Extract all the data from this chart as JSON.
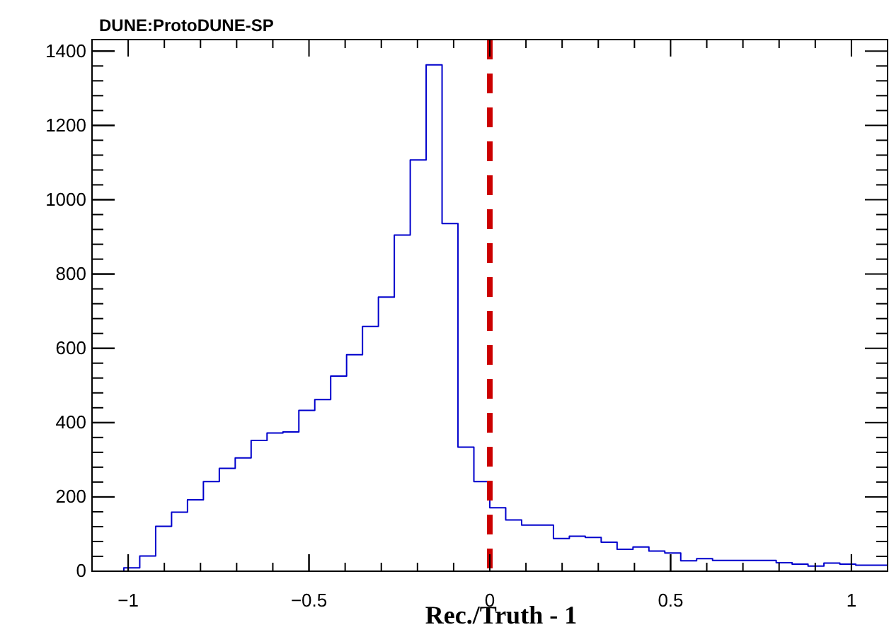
{
  "chart_data": {
    "type": "histogram",
    "title": "DUNE:ProtoDUNE-SP",
    "xlabel": "Rec./Truth - 1",
    "bins": [
      -1.1,
      -1.056,
      -1.012,
      -0.968,
      -0.924,
      -0.88,
      -0.836,
      -0.792,
      -0.748,
      -0.704,
      -0.66,
      -0.616,
      -0.572,
      -0.528,
      -0.484,
      -0.44,
      -0.396,
      -0.352,
      -0.308,
      -0.264,
      -0.22,
      -0.176,
      -0.132,
      -0.088,
      -0.044,
      0,
      0.044,
      0.088,
      0.132,
      0.176,
      0.22,
      0.264,
      0.308,
      0.352,
      0.396,
      0.44,
      0.484,
      0.528,
      0.572,
      0.616,
      0.66,
      0.704,
      0.748,
      0.792,
      0.836,
      0.88,
      0.924,
      0.968,
      1.012,
      1.056,
      1.1
    ],
    "values": [
      0,
      0,
      9,
      41,
      121,
      159,
      192,
      241,
      277,
      305,
      352,
      372,
      375,
      433,
      462,
      525,
      583,
      659,
      738,
      905,
      1107,
      1363,
      936,
      334,
      241,
      171,
      138,
      124,
      124,
      88,
      94,
      91,
      78,
      59,
      65,
      54,
      49,
      28,
      34,
      29,
      29,
      29,
      29,
      23,
      19,
      14,
      22,
      19,
      16,
      16
    ],
    "color": "#0000cc",
    "xlim": [
      -1.1,
      1.1
    ],
    "xticks": [
      {
        "value": -1,
        "label": "−1"
      },
      {
        "value": -0.5,
        "label": "−0.5"
      },
      0,
      0.5,
      1
    ],
    "ylim": [
      0,
      1431
    ],
    "yticks": [
      0,
      200,
      400,
      600,
      800,
      1000,
      1200,
      1400
    ],
    "ref_lines": [
      {
        "axis": "x",
        "value": 0,
        "color": "#cc0000",
        "line_style": "dashed"
      }
    ],
    "grid": false
  }
}
